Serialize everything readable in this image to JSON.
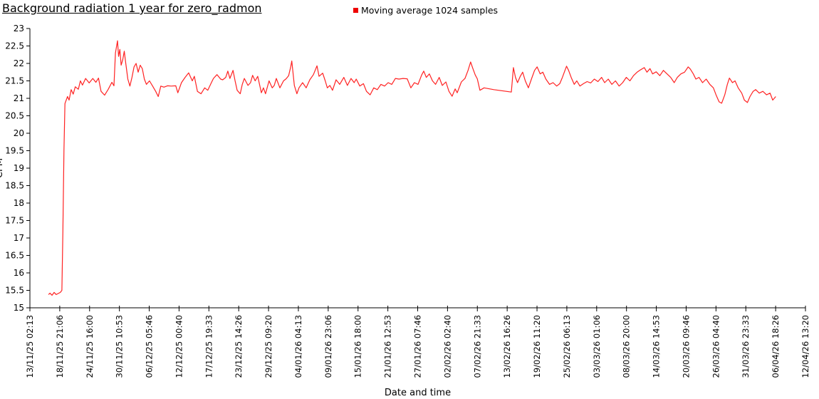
{
  "chart_data": {
    "type": "line",
    "title": "Background radiation 1 year for zero_radmon",
    "series_name": "Moving average 1024 samples",
    "xlabel": "Date and time",
    "ylabel": "CPM",
    "ylim": [
      15,
      23
    ],
    "y_tick_step": 0.5,
    "xlim_days": [
      0,
      150.46
    ],
    "grid": false,
    "legend_position": "top-center",
    "line_color": "#ff2222",
    "marker_color": "#ee0000",
    "axis_color": "#000000",
    "text_color": "#000000",
    "x_tick_labels": [
      "13/11/25 02:13",
      "18/11/25 21:06",
      "24/11/25 16:00",
      "30/11/25 10:53",
      "06/12/25 05:46",
      "12/12/25 00:40",
      "17/12/25 19:33",
      "23/12/25 14:26",
      "29/12/25 09:20",
      "04/01/26 04:13",
      "09/01/26 23:06",
      "15/01/26 18:00",
      "21/01/26 12:53",
      "27/01/26 07:46",
      "02/02/26 02:40",
      "07/02/26 21:33",
      "13/02/26 16:26",
      "19/02/26 11:20",
      "25/02/26 06:13",
      "03/03/26 01:06",
      "08/03/26 20:00",
      "14/03/26 14:53",
      "20/03/26 09:46",
      "26/03/26 04:40",
      "31/03/26 23:33",
      "06/04/26 18:26",
      "12/04/26 13:20"
    ],
    "points": [
      [
        3.6,
        15.38
      ],
      [
        3.9,
        15.42
      ],
      [
        4.3,
        15.36
      ],
      [
        4.7,
        15.44
      ],
      [
        5.1,
        15.38
      ],
      [
        5.5,
        15.41
      ],
      [
        5.9,
        15.44
      ],
      [
        6.2,
        15.5
      ],
      [
        6.4,
        17.2
      ],
      [
        6.6,
        19.5
      ],
      [
        6.8,
        20.85
      ],
      [
        7.3,
        21.05
      ],
      [
        7.6,
        20.95
      ],
      [
        8.0,
        21.25
      ],
      [
        8.4,
        21.12
      ],
      [
        8.8,
        21.33
      ],
      [
        9.4,
        21.26
      ],
      [
        9.8,
        21.5
      ],
      [
        10.2,
        21.38
      ],
      [
        10.8,
        21.57
      ],
      [
        11.5,
        21.44
      ],
      [
        12.2,
        21.57
      ],
      [
        12.8,
        21.46
      ],
      [
        13.3,
        21.58
      ],
      [
        13.8,
        21.2
      ],
      [
        14.5,
        21.09
      ],
      [
        15.2,
        21.26
      ],
      [
        15.9,
        21.46
      ],
      [
        16.3,
        21.36
      ],
      [
        16.6,
        22.3
      ],
      [
        17.0,
        22.65
      ],
      [
        17.2,
        22.2
      ],
      [
        17.45,
        22.4
      ],
      [
        17.7,
        21.95
      ],
      [
        18.0,
        22.1
      ],
      [
        18.3,
        22.35
      ],
      [
        18.6,
        22.0
      ],
      [
        19.0,
        21.55
      ],
      [
        19.4,
        21.35
      ],
      [
        19.8,
        21.6
      ],
      [
        20.2,
        21.9
      ],
      [
        20.6,
        22.0
      ],
      [
        21.0,
        21.75
      ],
      [
        21.4,
        21.95
      ],
      [
        21.8,
        21.85
      ],
      [
        22.2,
        21.55
      ],
      [
        22.6,
        21.4
      ],
      [
        23.2,
        21.5
      ],
      [
        23.8,
        21.35
      ],
      [
        24.4,
        21.2
      ],
      [
        24.9,
        21.05
      ],
      [
        25.4,
        21.35
      ],
      [
        26.0,
        21.32
      ],
      [
        26.7,
        21.36
      ],
      [
        27.4,
        21.35
      ],
      [
        28.3,
        21.36
      ],
      [
        28.7,
        21.16
      ],
      [
        29.4,
        21.45
      ],
      [
        30.1,
        21.6
      ],
      [
        30.8,
        21.73
      ],
      [
        31.5,
        21.5
      ],
      [
        31.9,
        21.63
      ],
      [
        32.5,
        21.2
      ],
      [
        33.2,
        21.13
      ],
      [
        33.9,
        21.3
      ],
      [
        34.5,
        21.23
      ],
      [
        35.2,
        21.45
      ],
      [
        35.6,
        21.57
      ],
      [
        36.3,
        21.68
      ],
      [
        37.0,
        21.55
      ],
      [
        37.4,
        21.53
      ],
      [
        38.0,
        21.6
      ],
      [
        38.4,
        21.78
      ],
      [
        38.8,
        21.57
      ],
      [
        39.4,
        21.8
      ],
      [
        39.8,
        21.5
      ],
      [
        40.2,
        21.23
      ],
      [
        40.8,
        21.13
      ],
      [
        41.2,
        21.4
      ],
      [
        41.6,
        21.57
      ],
      [
        42.3,
        21.37
      ],
      [
        42.8,
        21.45
      ],
      [
        43.2,
        21.66
      ],
      [
        43.7,
        21.5
      ],
      [
        44.2,
        21.63
      ],
      [
        44.9,
        21.16
      ],
      [
        45.3,
        21.3
      ],
      [
        45.7,
        21.13
      ],
      [
        46.4,
        21.5
      ],
      [
        47.0,
        21.3
      ],
      [
        47.4,
        21.37
      ],
      [
        47.8,
        21.57
      ],
      [
        48.5,
        21.3
      ],
      [
        49.2,
        21.5
      ],
      [
        49.7,
        21.56
      ],
      [
        50.2,
        21.65
      ],
      [
        50.6,
        21.9
      ],
      [
        50.8,
        22.07
      ],
      [
        51.3,
        21.37
      ],
      [
        51.8,
        21.13
      ],
      [
        52.2,
        21.3
      ],
      [
        52.9,
        21.45
      ],
      [
        53.6,
        21.3
      ],
      [
        54.3,
        21.53
      ],
      [
        55.0,
        21.68
      ],
      [
        55.7,
        21.93
      ],
      [
        56.1,
        21.63
      ],
      [
        56.8,
        21.72
      ],
      [
        57.3,
        21.5
      ],
      [
        57.7,
        21.3
      ],
      [
        58.2,
        21.37
      ],
      [
        58.7,
        21.23
      ],
      [
        59.4,
        21.53
      ],
      [
        60.1,
        21.4
      ],
      [
        60.9,
        21.6
      ],
      [
        61.6,
        21.37
      ],
      [
        62.3,
        21.57
      ],
      [
        62.9,
        21.45
      ],
      [
        63.3,
        21.55
      ],
      [
        64.0,
        21.35
      ],
      [
        64.7,
        21.42
      ],
      [
        65.3,
        21.2
      ],
      [
        66.0,
        21.1
      ],
      [
        66.7,
        21.3
      ],
      [
        67.4,
        21.25
      ],
      [
        68.1,
        21.4
      ],
      [
        68.8,
        21.35
      ],
      [
        69.5,
        21.45
      ],
      [
        70.2,
        21.4
      ],
      [
        70.9,
        21.57
      ],
      [
        71.6,
        21.55
      ],
      [
        72.4,
        21.57
      ],
      [
        73.2,
        21.56
      ],
      [
        73.9,
        21.3
      ],
      [
        74.6,
        21.45
      ],
      [
        75.3,
        21.4
      ],
      [
        76.0,
        21.67
      ],
      [
        76.4,
        21.78
      ],
      [
        76.9,
        21.6
      ],
      [
        77.5,
        21.7
      ],
      [
        78.1,
        21.5
      ],
      [
        78.7,
        21.4
      ],
      [
        79.4,
        21.6
      ],
      [
        80.0,
        21.37
      ],
      [
        80.7,
        21.47
      ],
      [
        81.3,
        21.2
      ],
      [
        81.9,
        21.06
      ],
      [
        82.5,
        21.27
      ],
      [
        82.9,
        21.16
      ],
      [
        83.7,
        21.47
      ],
      [
        84.4,
        21.57
      ],
      [
        85.0,
        21.8
      ],
      [
        85.5,
        22.04
      ],
      [
        85.9,
        21.87
      ],
      [
        86.4,
        21.67
      ],
      [
        86.8,
        21.56
      ],
      [
        87.3,
        21.23
      ],
      [
        88.1,
        21.3
      ],
      [
        90.0,
        21.25
      ],
      [
        93.4,
        21.18
      ],
      [
        93.8,
        21.88
      ],
      [
        94.2,
        21.6
      ],
      [
        94.6,
        21.45
      ],
      [
        95.1,
        21.62
      ],
      [
        95.6,
        21.75
      ],
      [
        96.1,
        21.5
      ],
      [
        96.7,
        21.3
      ],
      [
        97.3,
        21.55
      ],
      [
        97.9,
        21.8
      ],
      [
        98.4,
        21.9
      ],
      [
        99.0,
        21.7
      ],
      [
        99.5,
        21.75
      ],
      [
        100.1,
        21.55
      ],
      [
        100.8,
        21.4
      ],
      [
        101.5,
        21.45
      ],
      [
        102.2,
        21.35
      ],
      [
        102.8,
        21.42
      ],
      [
        103.3,
        21.6
      ],
      [
        103.8,
        21.8
      ],
      [
        104.1,
        21.92
      ],
      [
        104.5,
        21.8
      ],
      [
        105.0,
        21.6
      ],
      [
        105.6,
        21.4
      ],
      [
        106.1,
        21.5
      ],
      [
        106.7,
        21.35
      ],
      [
        107.4,
        21.42
      ],
      [
        108.1,
        21.48
      ],
      [
        108.8,
        21.44
      ],
      [
        109.5,
        21.55
      ],
      [
        110.2,
        21.48
      ],
      [
        110.9,
        21.6
      ],
      [
        111.5,
        21.45
      ],
      [
        112.2,
        21.55
      ],
      [
        112.9,
        21.4
      ],
      [
        113.6,
        21.5
      ],
      [
        114.3,
        21.35
      ],
      [
        115.0,
        21.45
      ],
      [
        115.7,
        21.6
      ],
      [
        116.4,
        21.5
      ],
      [
        117.1,
        21.65
      ],
      [
        117.8,
        21.75
      ],
      [
        118.5,
        21.82
      ],
      [
        119.2,
        21.88
      ],
      [
        119.7,
        21.75
      ],
      [
        120.3,
        21.85
      ],
      [
        120.8,
        21.7
      ],
      [
        121.5,
        21.76
      ],
      [
        122.2,
        21.65
      ],
      [
        122.9,
        21.8
      ],
      [
        123.6,
        21.7
      ],
      [
        124.3,
        21.6
      ],
      [
        125.0,
        21.45
      ],
      [
        125.6,
        21.6
      ],
      [
        126.3,
        21.7
      ],
      [
        127.0,
        21.75
      ],
      [
        127.7,
        21.9
      ],
      [
        128.1,
        21.84
      ],
      [
        128.7,
        21.7
      ],
      [
        129.2,
        21.55
      ],
      [
        129.8,
        21.6
      ],
      [
        130.5,
        21.45
      ],
      [
        131.2,
        21.55
      ],
      [
        131.9,
        21.4
      ],
      [
        132.6,
        21.3
      ],
      [
        133.1,
        21.1
      ],
      [
        133.7,
        20.9
      ],
      [
        134.2,
        20.86
      ],
      [
        134.8,
        21.1
      ],
      [
        135.3,
        21.4
      ],
      [
        135.7,
        21.58
      ],
      [
        136.3,
        21.45
      ],
      [
        136.8,
        21.5
      ],
      [
        137.4,
        21.3
      ],
      [
        138.1,
        21.15
      ],
      [
        138.6,
        20.95
      ],
      [
        139.2,
        20.88
      ],
      [
        139.7,
        21.05
      ],
      [
        140.3,
        21.2
      ],
      [
        140.8,
        21.25
      ],
      [
        141.5,
        21.15
      ],
      [
        142.2,
        21.2
      ],
      [
        142.9,
        21.1
      ],
      [
        143.6,
        21.15
      ],
      [
        144.1,
        20.95
      ],
      [
        144.7,
        21.05
      ]
    ]
  }
}
